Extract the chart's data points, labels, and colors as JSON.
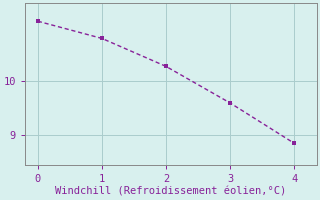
{
  "x": [
    0,
    1,
    2,
    3,
    4
  ],
  "y": [
    11.12,
    10.8,
    10.28,
    9.6,
    8.85
  ],
  "line_color": "#882299",
  "marker": "s",
  "markersize": 2.5,
  "linewidth": 1.0,
  "linestyle": "--",
  "dashes": [
    3,
    2
  ],
  "background_color": "#d8f0ee",
  "grid_color": "#aacccc",
  "xlabel": "Windchill (Refroidissement éolien,°C)",
  "xlabel_color": "#882299",
  "xlabel_fontsize": 7.5,
  "yticks": [
    9,
    10
  ],
  "xticks": [
    0,
    1,
    2,
    3,
    4
  ],
  "xlim": [
    -0.2,
    4.35
  ],
  "ylim": [
    8.45,
    11.45
  ],
  "tick_color": "#882299",
  "tick_fontsize": 7.5,
  "spine_color": "#888888"
}
